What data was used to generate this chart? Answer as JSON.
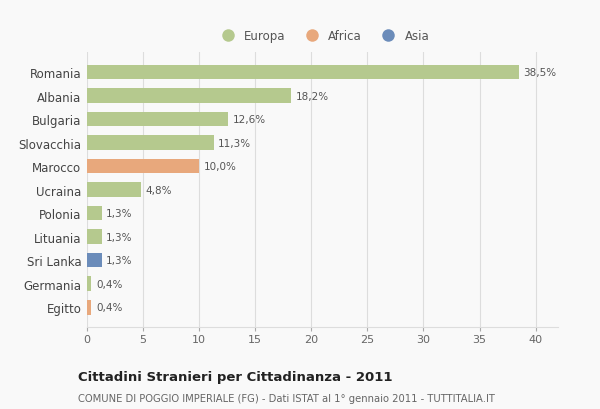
{
  "categories": [
    "Romania",
    "Albania",
    "Bulgaria",
    "Slovacchia",
    "Marocco",
    "Ucraina",
    "Polonia",
    "Lituania",
    "Sri Lanka",
    "Germania",
    "Egitto"
  ],
  "values": [
    38.5,
    18.2,
    12.6,
    11.3,
    10.0,
    4.8,
    1.3,
    1.3,
    1.3,
    0.4,
    0.4
  ],
  "labels": [
    "38,5%",
    "18,2%",
    "12,6%",
    "11,3%",
    "10,0%",
    "4,8%",
    "1,3%",
    "1,3%",
    "1,3%",
    "0,4%",
    "0,4%"
  ],
  "continents": [
    "Europa",
    "Europa",
    "Europa",
    "Europa",
    "Africa",
    "Europa",
    "Europa",
    "Europa",
    "Asia",
    "Europa",
    "Africa"
  ],
  "colors": {
    "Europa": "#b5c98e",
    "Africa": "#e8a87c",
    "Asia": "#6b8cba"
  },
  "xlim": [
    0,
    42
  ],
  "xticks": [
    0,
    5,
    10,
    15,
    20,
    25,
    30,
    35,
    40
  ],
  "title": "Cittadini Stranieri per Cittadinanza - 2011",
  "subtitle": "COMUNE DI POGGIO IMPERIALE (FG) - Dati ISTAT al 1° gennaio 2011 - TUTTITALIA.IT",
  "background_color": "#f9f9f9",
  "grid_color": "#dddddd",
  "legend_order": [
    "Europa",
    "Africa",
    "Asia"
  ]
}
